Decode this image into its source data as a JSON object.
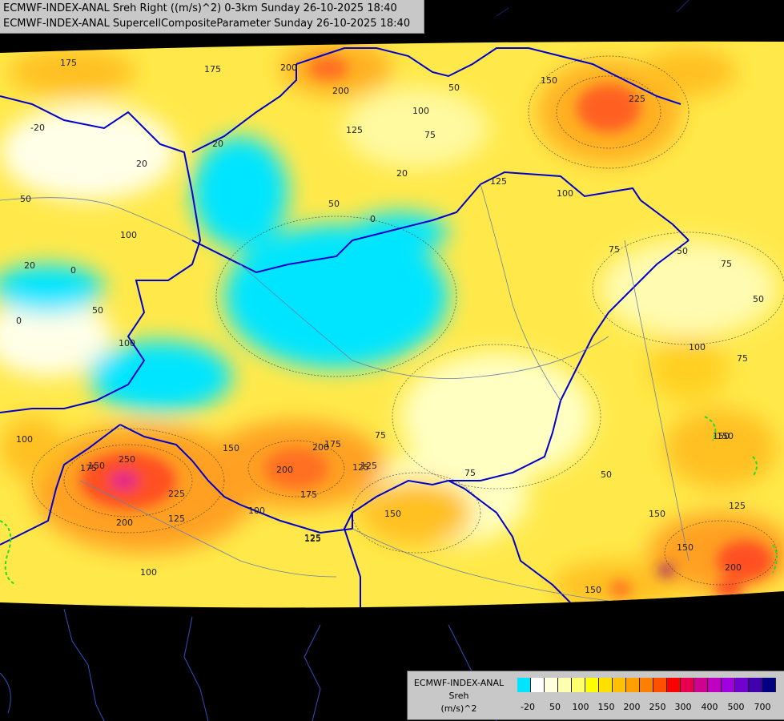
{
  "title": {
    "line1": "ECMWF-INDEX-ANAL Sreh Right ((m/s)^2) 0-3km Sunday 26-10-2025 18:40",
    "line2": "ECMWF-INDEX-ANAL SupercellCompositeParameter Sunday 26-10-2025 18:40"
  },
  "legend": {
    "model": "ECMWF-INDEX-ANAL",
    "variable": "Sreh",
    "unit": "(m/s)^2",
    "colors": [
      "#00e5ff",
      "#ffffff",
      "#ffffe0",
      "#ffffb0",
      "#ffff70",
      "#ffff00",
      "#ffe000",
      "#ffc000",
      "#ffa000",
      "#ff8000",
      "#ff5000",
      "#ff0000",
      "#e80050",
      "#d00090",
      "#c000c0",
      "#a000e0",
      "#7000d0",
      "#4000b0",
      "#000080"
    ],
    "ticks": [
      "-20",
      "50",
      "100",
      "150",
      "200",
      "250",
      "300",
      "400",
      "500",
      "700"
    ]
  },
  "contour_labels": [
    {
      "text": "175"
    },
    {
      "text": "175"
    },
    {
      "text": "200"
    },
    {
      "text": "200"
    },
    {
      "text": "225"
    },
    {
      "text": "150"
    },
    {
      "text": "100"
    },
    {
      "text": "125"
    },
    {
      "text": "75"
    },
    {
      "text": "50"
    },
    {
      "text": "-20"
    },
    {
      "text": "20"
    },
    {
      "text": "20"
    },
    {
      "text": "50"
    },
    {
      "text": "100"
    },
    {
      "text": "0"
    },
    {
      "text": "20"
    },
    {
      "text": "0"
    },
    {
      "text": "50"
    },
    {
      "text": "50"
    },
    {
      "text": "20"
    },
    {
      "text": "0"
    },
    {
      "text": "125"
    },
    {
      "text": "100"
    },
    {
      "text": "75"
    },
    {
      "text": "50"
    },
    {
      "text": "75"
    },
    {
      "text": "100"
    },
    {
      "text": "75"
    },
    {
      "text": "50"
    },
    {
      "text": "100"
    },
    {
      "text": "75"
    },
    {
      "text": "150"
    },
    {
      "text": "125"
    },
    {
      "text": "175"
    },
    {
      "text": "150"
    },
    {
      "text": "200"
    },
    {
      "text": "150"
    },
    {
      "text": "125"
    },
    {
      "text": "100"
    },
    {
      "text": "150"
    },
    {
      "text": "200"
    },
    {
      "text": "175"
    },
    {
      "text": "250"
    },
    {
      "text": "225"
    },
    {
      "text": "175"
    },
    {
      "text": "200"
    },
    {
      "text": "100"
    },
    {
      "text": "125"
    },
    {
      "text": "100"
    },
    {
      "text": "75"
    },
    {
      "text": "125"
    },
    {
      "text": "150"
    },
    {
      "text": "50"
    },
    {
      "text": "150"
    },
    {
      "text": "200"
    },
    {
      "text": "150"
    },
    {
      "text": "125"
    },
    {
      "text": "125"
    },
    {
      "text": "150"
    }
  ]
}
